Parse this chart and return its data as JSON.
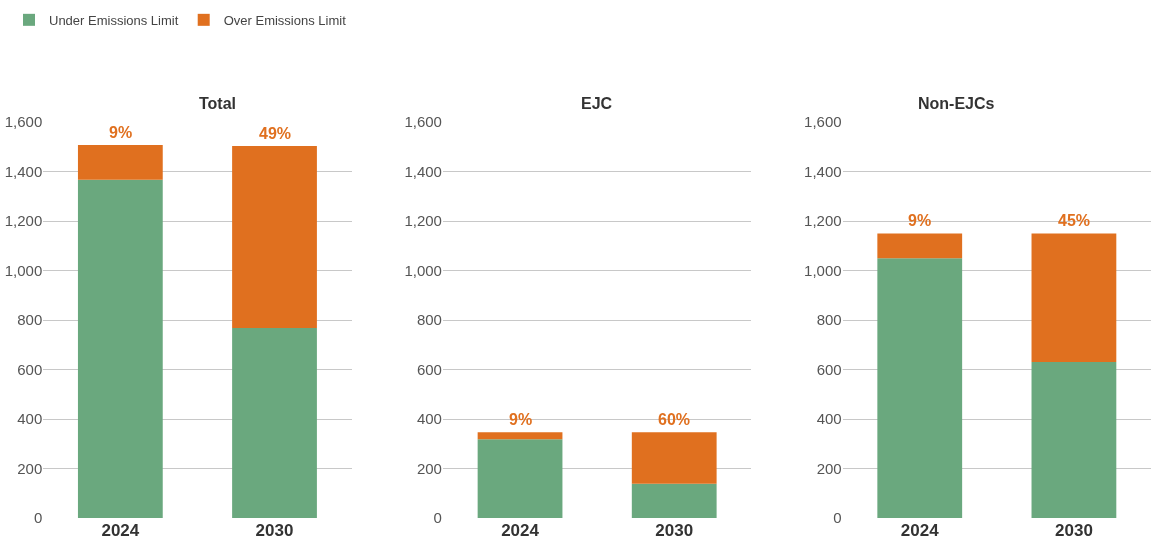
{
  "chart_data": [
    {
      "type": "bar",
      "title": "Total",
      "stacked": true,
      "categories": [
        "2024",
        "2030"
      ],
      "series": [
        {
          "name": "Under Emissions Limit",
          "color": "#6aa87e",
          "values": [
            1367,
            768
          ]
        },
        {
          "name": "Over Emissions Limit",
          "color": "#e0701f",
          "values": [
            140,
            735
          ]
        }
      ],
      "annotations": [
        {
          "text": "9%",
          "x": "2024",
          "y": 1507
        },
        {
          "text": "49%",
          "x": "2030",
          "y": 1503
        }
      ],
      "ylim": [
        0,
        1600
      ],
      "yticks": [
        0,
        {
          "value": 200,
          "label": "200"
        },
        {
          "value": 400,
          "label": "400"
        },
        {
          "value": 600,
          "label": "600"
        },
        {
          "value": 800,
          "label": "800"
        },
        {
          "value": 1000,
          "label": "1,000"
        },
        {
          "value": 1200,
          "label": "1,200"
        },
        {
          "value": 1400,
          "label": "1,400"
        },
        {
          "value": 1600,
          "label": "1,600"
        }
      ],
      "grid": "y",
      "legend": "top left"
    },
    {
      "type": "bar",
      "title": "EJC",
      "stacked": true,
      "categories": [
        "2024",
        "2030"
      ],
      "series": [
        {
          "color": "#6aa87e",
          "values": [
            318,
            138
          ]
        },
        {
          "color": "#e0701f",
          "values": [
            28,
            208
          ]
        }
      ],
      "annotations": [
        {
          "text": "9%",
          "x": "2024",
          "y": 346
        },
        {
          "text": "60%",
          "x": "2030",
          "y": 346
        }
      ],
      "ylim": [
        0,
        1600
      ],
      "yticks": [
        0,
        {
          "value": 200,
          "label": "200"
        },
        {
          "value": 400,
          "label": "400"
        },
        {
          "value": 600,
          "label": "600"
        },
        {
          "value": 800,
          "label": "800"
        },
        {
          "value": 1000,
          "label": "1,000"
        },
        {
          "value": 1200,
          "label": "1,200"
        },
        {
          "value": 1400,
          "label": "1,400"
        },
        {
          "value": 1600,
          "label": "1,600"
        }
      ],
      "grid": "y"
    },
    {
      "type": "bar",
      "title": "Non-EJCs",
      "stacked": true,
      "categories": [
        "2024",
        "2030"
      ],
      "series": [
        {
          "color": "#6aa87e",
          "values": [
            1049,
            630
          ]
        },
        {
          "color": "#e0701f",
          "values": [
            101,
            520
          ]
        }
      ],
      "annotations": [
        {
          "text": "9%",
          "x": "2024",
          "y": 1150
        },
        {
          "text": "45%",
          "x": "2030",
          "y": 1150
        }
      ],
      "ylim": [
        0,
        1600
      ],
      "yticks": [
        0,
        {
          "value": 200,
          "label": "200"
        },
        {
          "value": 400,
          "label": "400"
        },
        {
          "value": 600,
          "label": "600"
        },
        {
          "value": 800,
          "label": "800"
        },
        {
          "value": 1000,
          "label": "1,000"
        },
        {
          "value": 1200,
          "label": "1,200"
        },
        {
          "value": 1400,
          "label": "1,400"
        },
        {
          "value": 1600,
          "label": "1,600"
        }
      ],
      "grid": "y"
    }
  ]
}
